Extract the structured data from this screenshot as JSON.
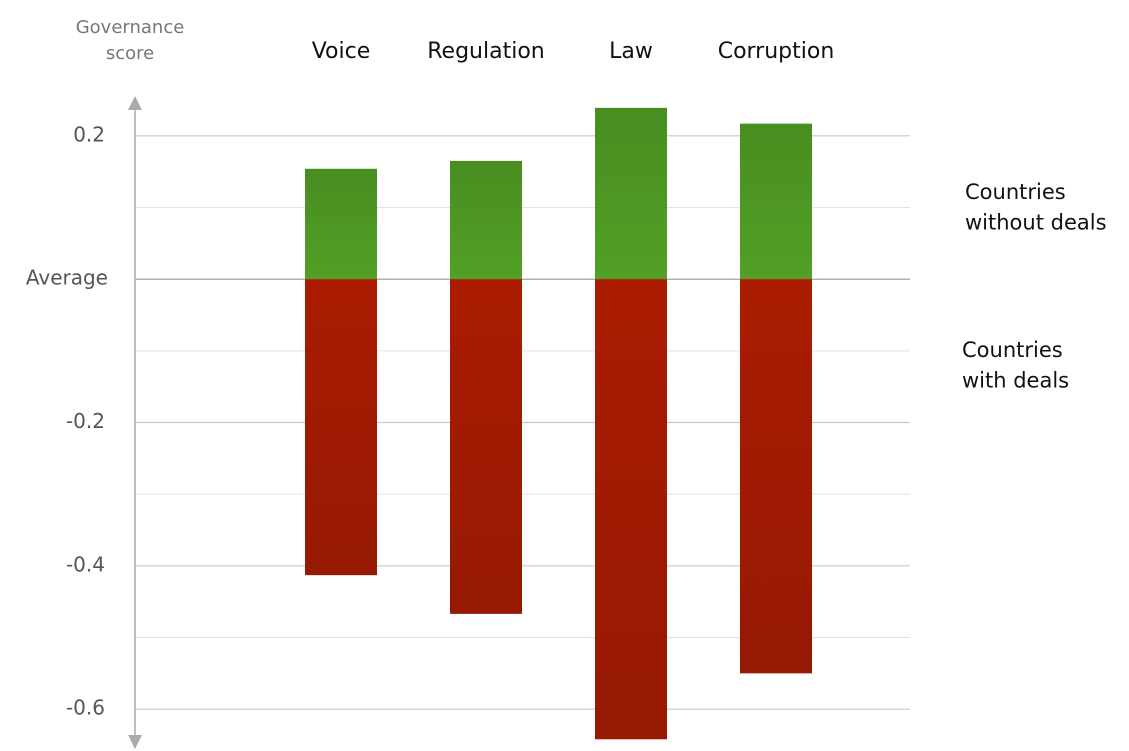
{
  "chart_data": {
    "type": "bar",
    "y_axis_label": "Governance score",
    "categories": [
      "Voice",
      "Regulation",
      "Law",
      "Corruption"
    ],
    "series": [
      {
        "name": "Countries without deals",
        "color": "#52a025",
        "values": [
          0.154,
          0.165,
          0.239,
          0.217
        ]
      },
      {
        "name": "Countries with deals",
        "color": "#aa1c02",
        "values": [
          -0.413,
          -0.467,
          -0.642,
          -0.55
        ]
      }
    ],
    "ylim": [
      -0.65,
      0.25
    ],
    "yticks": [
      0.2,
      {
        "value": 0,
        "label": "Average"
      },
      -0.2,
      -0.4,
      -0.6
    ],
    "minor_yticks": [
      0.1,
      -0.1,
      -0.3,
      -0.5
    ],
    "grid": true
  }
}
